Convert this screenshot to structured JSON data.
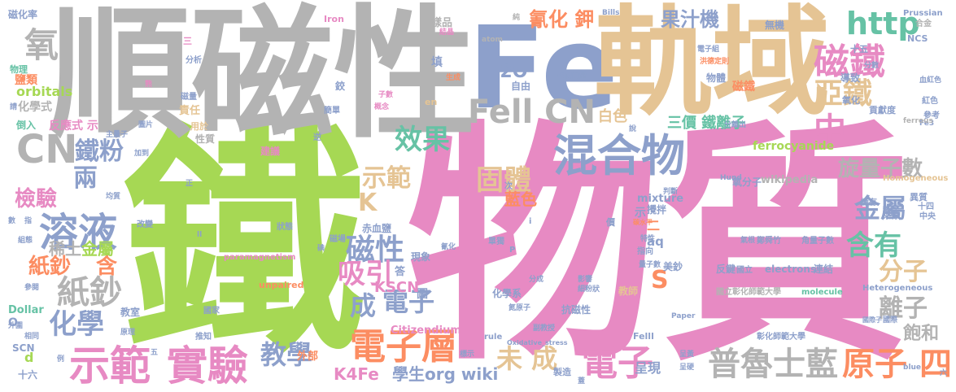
{
  "words": [
    {
      "text": "鐵",
      "color": "#a6d854"
    },
    {
      "text": "物質",
      "color": "#e78ac3"
    },
    {
      "text": "順磁性",
      "color": "#b3b3b3"
    },
    {
      "text": "Fe",
      "color": "#8da0cb"
    },
    {
      "text": "軌域",
      "color": "#e5c494"
    },
    {
      "text": "混合物",
      "color": "#8da0cb"
    },
    {
      "text": "Fell CN",
      "color": "#b3b3b3"
    },
    {
      "text": "磁鐵",
      "color": "#e78ac3"
    },
    {
      "text": "亞鐵",
      "color": "#e5c494"
    },
    {
      "text": "示範",
      "color": "#e78ac3"
    },
    {
      "text": "實驗",
      "color": "#e78ac3"
    },
    {
      "text": "電子層",
      "color": "#fc8d62"
    },
    {
      "text": "電子",
      "color": "#e78ac3"
    },
    {
      "text": "普魯士藍",
      "color": "#b3b3b3"
    },
    {
      "text": "原子",
      "color": "#fc8d62"
    },
    {
      "text": "溶液",
      "color": "#8da0cb"
    },
    {
      "text": "紙鈔",
      "color": "#b3b3b3"
    },
    {
      "text": "CN",
      "color": "#b3b3b3"
    },
    {
      "text": "氧",
      "color": "#b3b3b3"
    },
    {
      "text": "http",
      "color": "#66c2a5"
    },
    {
      "text": "效果",
      "color": "#66c2a5"
    },
    {
      "text": "固體",
      "color": "#e5c494"
    },
    {
      "text": "示範",
      "color": "#e5c494"
    },
    {
      "text": "中",
      "color": "#e78ac3"
    },
    {
      "text": "磁性",
      "color": "#8da0cb"
    },
    {
      "text": "吸引",
      "color": "#e78ac3"
    },
    {
      "text": "教學",
      "color": "#8da0cb"
    },
    {
      "text": "金屬",
      "color": "#8da0cb"
    },
    {
      "text": "含有",
      "color": "#66c2a5"
    },
    {
      "text": "分子",
      "color": "#e5c494"
    },
    {
      "text": "離子",
      "color": "#b3b3b3"
    },
    {
      "text": "旋量子數",
      "color": "#b3b3b3"
    },
    {
      "text": "未 成",
      "color": "#e5c494"
    },
    {
      "text": "電子",
      "color": "#8da0cb"
    },
    {
      "text": "鐵粉",
      "color": "#8da0cb"
    },
    {
      "text": "兩",
      "color": "#8da0cb"
    },
    {
      "text": "檢驗",
      "color": "#e78ac3"
    },
    {
      "text": "化學",
      "color": "#8da0cb"
    },
    {
      "text": "紙鈔",
      "color": "#fc8d62"
    },
    {
      "text": "含",
      "color": "#fc8d62"
    },
    {
      "text": "稀土",
      "color": "#b3b3b3"
    },
    {
      "text": "金屬",
      "color": "#a6d854"
    },
    {
      "text": "果汁機",
      "color": "#8da0cb"
    },
    {
      "text": "氰化 鉀",
      "color": "#fc8d62"
    },
    {
      "text": "磁鐵",
      "color": "#fc8d62"
    },
    {
      "text": "圖",
      "color": "#8da0cb"
    },
    {
      "text": "成",
      "color": "#8da0cb"
    },
    {
      "text": "K",
      "color": "#e5c494"
    },
    {
      "text": "S",
      "color": "#fc8d62"
    },
    {
      "text": "四",
      "color": "#fc8d62"
    },
    {
      "text": "飽和",
      "color": "#b3b3b3"
    },
    {
      "text": "三價 鐵離子",
      "color": "#66c2a5"
    },
    {
      "text": "KSCN",
      "color": "#e78ac3"
    },
    {
      "text": "K4Fe",
      "color": "#e78ac3"
    },
    {
      "text": "學生org wiki",
      "color": "#8da0cb"
    },
    {
      "text": "白色",
      "color": "#e5c494"
    },
    {
      "text": "藍色",
      "color": "#fc8d62"
    },
    {
      "text": "H2O",
      "color": "#8da0cb"
    },
    {
      "text": "磁化率",
      "color": "#8da0cb"
    },
    {
      "text": "物理",
      "color": "#66c2a5"
    },
    {
      "text": "orbitals",
      "color": "#a6d854"
    },
    {
      "text": "鹽類",
      "color": "#fc8d62"
    },
    {
      "text": "化學式",
      "color": "#b3b3b3"
    },
    {
      "text": "反應式 示",
      "color": "#e78ac3"
    },
    {
      "text": "倒入",
      "color": "#66c2a5"
    },
    {
      "text": "性質",
      "color": "#b3b3b3"
    },
    {
      "text": "責任",
      "color": "#e5c494"
    },
    {
      "text": "建議",
      "color": "#e78ac3"
    },
    {
      "text": "ferrocyanide",
      "color": "#a6d854"
    },
    {
      "text": "wikipedia",
      "color": "#b3b3b3"
    },
    {
      "text": "mixture",
      "color": "#8da0cb"
    },
    {
      "text": "aq",
      "color": "#8da0cb"
    },
    {
      "text": "Citizendium",
      "color": "#e78ac3"
    },
    {
      "text": "Dollar",
      "color": "#66c2a5"
    },
    {
      "text": "SCN",
      "color": "#8da0cb"
    },
    {
      "text": "十六",
      "color": "#8da0cb"
    },
    {
      "text": "呈現",
      "color": "#8da0cb"
    },
    {
      "text": "Fe3",
      "color": "#8da0cb"
    },
    {
      "text": "ferrous",
      "color": "#b3b3b3"
    },
    {
      "text": "Heterogeneous",
      "color": "#8da0cb"
    },
    {
      "text": "Homogeneous",
      "color": "#e5c494"
    },
    {
      "text": "paramagnetism",
      "color": "#e78ac3"
    },
    {
      "text": "unpaired",
      "color": "#fc8d62"
    },
    {
      "text": "electrons",
      "color": "#8da0cb"
    },
    {
      "text": "molecule",
      "color": "#66c2a5"
    },
    {
      "text": "國立彰化師範大學",
      "color": "#b3b3b3"
    },
    {
      "text": "Iron",
      "color": "#e78ac3"
    },
    {
      "text": "Bills",
      "color": "#8da0cb"
    },
    {
      "text": "Prussian",
      "color": "#8da0cb"
    },
    {
      "text": "NCS",
      "color": "#8da0cb"
    },
    {
      "text": "合金",
      "color": "#b3b3b3"
    },
    {
      "text": "十五",
      "color": "#8da0cb"
    },
    {
      "text": "洪德定則",
      "color": "#fc8d62"
    },
    {
      "text": "atom",
      "color": "#b3b3b3"
    },
    {
      "text": "純",
      "color": "#b3b3b3"
    },
    {
      "text": "樣品",
      "color": "#b3b3b3"
    },
    {
      "text": "無機",
      "color": "#8da0cb"
    },
    {
      "text": "物體",
      "color": "#8da0cb"
    },
    {
      "text": "導致",
      "color": "#8da0cb"
    },
    {
      "text": "氧化",
      "color": "#8da0cb"
    },
    {
      "text": "紅色",
      "color": "#8da0cb"
    },
    {
      "text": "貢獻度",
      "color": "#8da0cb"
    },
    {
      "text": "參考",
      "color": "#8da0cb"
    },
    {
      "text": "異質",
      "color": "#8da0cb"
    },
    {
      "text": "十四",
      "color": "#8da0cb"
    },
    {
      "text": "中央",
      "color": "#8da0cb"
    },
    {
      "text": "來源",
      "color": "#8da0cb"
    },
    {
      "text": "擁有",
      "color": "#8da0cb"
    },
    {
      "text": "氧分子",
      "color": "#8da0cb"
    },
    {
      "text": "攪拌",
      "color": "#8da0cb"
    },
    {
      "text": "赤血鹽",
      "color": "#8da0cb"
    },
    {
      "text": "現象",
      "color": "#8da0cb"
    },
    {
      "text": "答",
      "color": "#8da0cb"
    },
    {
      "text": "化學系",
      "color": "#8da0cb"
    },
    {
      "text": "抗磁性",
      "color": "#8da0cb"
    },
    {
      "text": "教師",
      "color": "#e5c494"
    },
    {
      "text": "美鈔",
      "color": "#8da0cb"
    },
    {
      "text": "反鍵",
      "color": "#8da0cb"
    },
    {
      "text": "連結",
      "color": "#8da0cb"
    },
    {
      "text": "角量子數",
      "color": "#8da0cb"
    },
    {
      "text": "鄭舜竹",
      "color": "#8da0cb"
    },
    {
      "text": "教室",
      "color": "#8da0cb"
    },
    {
      "text": "外部",
      "color": "#fc8d62"
    },
    {
      "text": "製造",
      "color": "#8da0cb"
    },
    {
      "text": "Paper",
      "color": "#8da0cb"
    },
    {
      "text": "blue",
      "color": "#8da0cb"
    },
    {
      "text": "副教授",
      "color": "#8da0cb"
    },
    {
      "text": "rule",
      "color": "#8da0cb"
    },
    {
      "text": "Oxidative_stress",
      "color": "#8da0cb"
    },
    {
      "text": "Felll",
      "color": "#8da0cb"
    },
    {
      "text": "國家",
      "color": "#8da0cb"
    },
    {
      "text": "彰化師範大學",
      "color": "#8da0cb"
    },
    {
      "text": "生成",
      "color": "#fc8d62"
    },
    {
      "text": "子數",
      "color": "#e78ac3"
    },
    {
      "text": "概念",
      "color": "#e78ac3"
    },
    {
      "text": "簡單",
      "color": "#8da0cb"
    },
    {
      "text": "自由",
      "color": "#8da0cb"
    },
    {
      "text": "磁化向量",
      "color": "#8da0cb"
    },
    {
      "text": "電子組",
      "color": "#8da0cb"
    },
    {
      "text": "分析",
      "color": "#8da0cb"
    },
    {
      "text": "鉸",
      "color": "#8da0cb"
    },
    {
      "text": "三",
      "color": "#e78ac3"
    },
    {
      "text": "填",
      "color": "#8da0cb"
    },
    {
      "text": "en",
      "color": "#e5c494"
    },
    {
      "text": "圖片",
      "color": "#8da0cb"
    },
    {
      "text": "主量子",
      "color": "#8da0cb"
    },
    {
      "text": "加到",
      "color": "#8da0cb"
    },
    {
      "text": "均質",
      "color": "#8da0cb"
    },
    {
      "text": "數",
      "color": "#8da0cb"
    },
    {
      "text": "指",
      "color": "#8da0cb"
    },
    {
      "text": "組態",
      "color": "#8da0cb"
    },
    {
      "text": "參閱",
      "color": "#8da0cb"
    },
    {
      "text": "外圍",
      "color": "#8da0cb"
    },
    {
      "text": "相同",
      "color": "#8da0cb"
    },
    {
      "text": "例",
      "color": "#8da0cb"
    },
    {
      "text": "推知",
      "color": "#8da0cb"
    },
    {
      "text": "原理",
      "color": "#8da0cb"
    },
    {
      "text": "五",
      "color": "#8da0cb"
    },
    {
      "text": "磁場",
      "color": "#8da0cb"
    },
    {
      "text": "改變",
      "color": "#8da0cb"
    },
    {
      "text": "狀態",
      "color": "#8da0cb"
    },
    {
      "text": "分成",
      "color": "#8da0cb"
    },
    {
      "text": "影響",
      "color": "#8da0cb"
    },
    {
      "text": "細粉狀",
      "color": "#8da0cb"
    },
    {
      "text": "氮原子",
      "color": "#8da0cb"
    },
    {
      "text": "單獨",
      "color": "#8da0cb"
    },
    {
      "text": "價",
      "color": "#8da0cb"
    },
    {
      "text": "指向",
      "color": "#8da0cb"
    },
    {
      "text": "特性",
      "color": "#8da0cb"
    },
    {
      "text": "量子數",
      "color": "#8da0cb"
    },
    {
      "text": "國立",
      "color": "#8da0cb"
    },
    {
      "text": "氣根",
      "color": "#8da0cb"
    },
    {
      "text": "判斷",
      "color": "#8da0cb"
    },
    {
      "text": "稱為",
      "color": "#8da0cb"
    },
    {
      "text": "Hund",
      "color": "#8da0cb"
    },
    {
      "text": "分離出",
      "color": "#8da0cb"
    },
    {
      "text": "血紅色",
      "color": "#8da0cb"
    },
    {
      "text": "分數",
      "color": "#8da0cb"
    },
    {
      "text": "呈黃",
      "color": "#8da0cb"
    },
    {
      "text": "標示",
      "color": "#8da0cb"
    },
    {
      "text": "國際",
      "color": "#8da0cb"
    },
    {
      "text": "六",
      "color": "#8da0cb"
    },
    {
      "text": "d",
      "color": "#a6d854"
    },
    {
      "text": "O",
      "color": "#8da0cb"
    },
    {
      "text": "二",
      "color": "#fc8d62"
    },
    {
      "text": "示",
      "color": "#8da0cb"
    },
    {
      "text": "用於",
      "color": "#e5c494"
    },
    {
      "text": "逆",
      "color": "#8da0cb"
    },
    {
      "text": "磁量",
      "color": "#8da0cb"
    },
    {
      "text": "熊",
      "color": "#e78ac3"
    },
    {
      "text": "結晶",
      "color": "#e78ac3"
    },
    {
      "text": "請",
      "color": "#8da0cb"
    },
    {
      "text": "說",
      "color": "#8da0cb"
    },
    {
      "text": "次",
      "color": "#8da0cb"
    },
    {
      "text": "正",
      "color": "#8da0cb"
    },
    {
      "text": "碳水平",
      "color": "#fc8d62"
    },
    {
      "text": "ll",
      "color": "#8da0cb"
    },
    {
      "text": "P",
      "color": "#8da0cb"
    },
    {
      "text": "i",
      "color": "#8da0cb"
    },
    {
      "text": "氰化",
      "color": "#8da0cb"
    },
    {
      "text": "碘",
      "color": "#8da0cb"
    },
    {
      "text": "蓋",
      "color": "#8da0cb"
    },
    {
      "text": "呈硬",
      "color": "#8da0cb"
    },
    {
      "text": "國際子",
      "color": "#8da0cb"
    }
  ]
}
